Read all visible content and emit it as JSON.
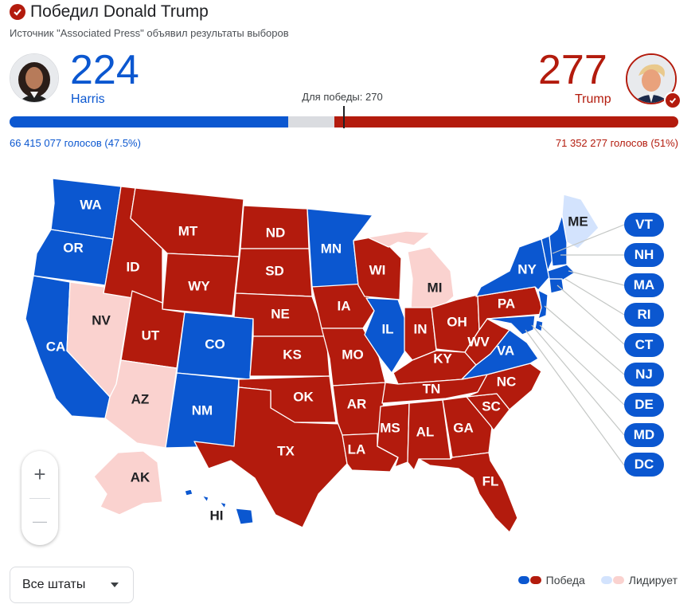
{
  "header": {
    "title": "Победил Donald Trump",
    "subtitle": "Источник \"Associated Press\" объявил результаты выборов"
  },
  "harris": {
    "electoral": "224",
    "name": "Harris",
    "votes": "66 415 077 голосов (47.5%)",
    "color": "#0b57d0"
  },
  "trump": {
    "electoral": "277",
    "name": "Trump",
    "votes": "71 352 277 голосов (51%)",
    "color": "#b31b0d"
  },
  "threshold": {
    "label": "Для победы: 270",
    "value": 270,
    "total": 538
  },
  "colors": {
    "dem_win": "#0b57d0",
    "rep_win": "#b31b0d",
    "dem_lead": "#d3e3fd",
    "rep_lead": "#fad2cf"
  },
  "states": [
    {
      "code": "WA",
      "status": "dem_win"
    },
    {
      "code": "OR",
      "status": "dem_win"
    },
    {
      "code": "CA",
      "status": "dem_win"
    },
    {
      "code": "NV",
      "status": "rep_lead"
    },
    {
      "code": "ID",
      "status": "rep_win"
    },
    {
      "code": "MT",
      "status": "rep_win"
    },
    {
      "code": "WY",
      "status": "rep_win"
    },
    {
      "code": "UT",
      "status": "rep_win"
    },
    {
      "code": "AZ",
      "status": "rep_lead"
    },
    {
      "code": "CO",
      "status": "dem_win"
    },
    {
      "code": "NM",
      "status": "dem_win"
    },
    {
      "code": "ND",
      "status": "rep_win"
    },
    {
      "code": "SD",
      "status": "rep_win"
    },
    {
      "code": "NE",
      "status": "rep_win"
    },
    {
      "code": "KS",
      "status": "rep_win"
    },
    {
      "code": "OK",
      "status": "rep_win"
    },
    {
      "code": "TX",
      "status": "rep_win"
    },
    {
      "code": "MN",
      "status": "dem_win"
    },
    {
      "code": "IA",
      "status": "rep_win"
    },
    {
      "code": "MO",
      "status": "rep_win"
    },
    {
      "code": "AR",
      "status": "rep_win"
    },
    {
      "code": "LA",
      "status": "rep_win"
    },
    {
      "code": "WI",
      "status": "rep_win"
    },
    {
      "code": "IL",
      "status": "dem_win"
    },
    {
      "code": "MI",
      "status": "rep_lead"
    },
    {
      "code": "IN",
      "status": "rep_win"
    },
    {
      "code": "OH",
      "status": "rep_win"
    },
    {
      "code": "KY",
      "status": "rep_win"
    },
    {
      "code": "TN",
      "status": "rep_win"
    },
    {
      "code": "MS",
      "status": "rep_win"
    },
    {
      "code": "AL",
      "status": "rep_win"
    },
    {
      "code": "GA",
      "status": "rep_win"
    },
    {
      "code": "FL",
      "status": "rep_win"
    },
    {
      "code": "SC",
      "status": "rep_win"
    },
    {
      "code": "NC",
      "status": "rep_win"
    },
    {
      "code": "VA",
      "status": "dem_win"
    },
    {
      "code": "WV",
      "status": "rep_win"
    },
    {
      "code": "PA",
      "status": "rep_win"
    },
    {
      "code": "NY",
      "status": "dem_win"
    },
    {
      "code": "ME",
      "status": "dem_lead"
    },
    {
      "code": "AK",
      "status": "rep_lead"
    },
    {
      "code": "HI",
      "status": "dem_win"
    }
  ],
  "small_states": [
    "VT",
    "NH",
    "MA",
    "RI",
    "CT",
    "NJ",
    "DE",
    "MD",
    "DC"
  ],
  "zoom": {
    "in": "+",
    "out": "—"
  },
  "filter": {
    "label": "Все штаты"
  },
  "legend": {
    "win": "Победа",
    "lead": "Лидирует"
  }
}
